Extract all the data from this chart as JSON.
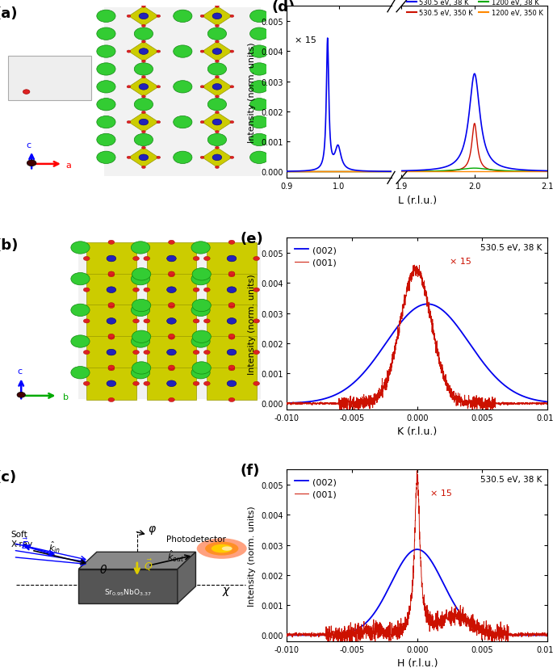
{
  "colors": {
    "blue": "#0000EE",
    "red": "#CC1100",
    "green": "#00AA00",
    "orange": "#FF8800",
    "sr_green": "#33CC33",
    "nb_blue": "#2222BB",
    "o_red": "#DD2222",
    "oct_yellow": "#CCCC00",
    "oct_edge": "#999900"
  },
  "panel_d": {
    "xlabel": "L (r.l.u.)",
    "ylabel": "Intensity (norm. units)",
    "ylim": [
      -0.0002,
      0.0055
    ],
    "yticks": [
      0.0,
      0.001,
      0.002,
      0.003,
      0.004,
      0.005
    ],
    "legend": [
      {
        "label": "530.5 eV, 38 K",
        "color": "#0000EE"
      },
      {
        "label": "530.5 eV, 350 K",
        "color": "#CC1100"
      },
      {
        "label": "1200 eV, 38 K",
        "color": "#00AA00"
      },
      {
        "label": "1200 eV, 350 K",
        "color": "#FF8800"
      }
    ],
    "x15_label": "× 15"
  },
  "panel_e": {
    "xlabel": "K (r.l.u.)",
    "ylabel": "Intensity (norm. units)",
    "xlim": [
      -0.01,
      0.01
    ],
    "ylim": [
      -0.0002,
      0.0055
    ],
    "yticks": [
      0.0,
      0.001,
      0.002,
      0.003,
      0.004,
      0.005
    ],
    "info_text": "530.5 eV, 38 K",
    "x15_label": "× 15",
    "legend": [
      {
        "label": "(002)",
        "color": "#0000EE"
      },
      {
        "label": "(001)",
        "color": "#CC1100"
      }
    ]
  },
  "panel_f": {
    "xlabel": "H (r.l.u.)",
    "ylabel": "Intensity (norm. units)",
    "xlim": [
      -0.01,
      0.01
    ],
    "ylim": [
      -0.0002,
      0.0055
    ],
    "yticks": [
      0.0,
      0.001,
      0.002,
      0.003,
      0.004,
      0.005
    ],
    "info_text": "530.5 eV, 38 K",
    "x15_label": "× 15",
    "legend": [
      {
        "label": "(002)",
        "color": "#0000EE"
      },
      {
        "label": "(001)",
        "color": "#CC1100"
      }
    ]
  }
}
